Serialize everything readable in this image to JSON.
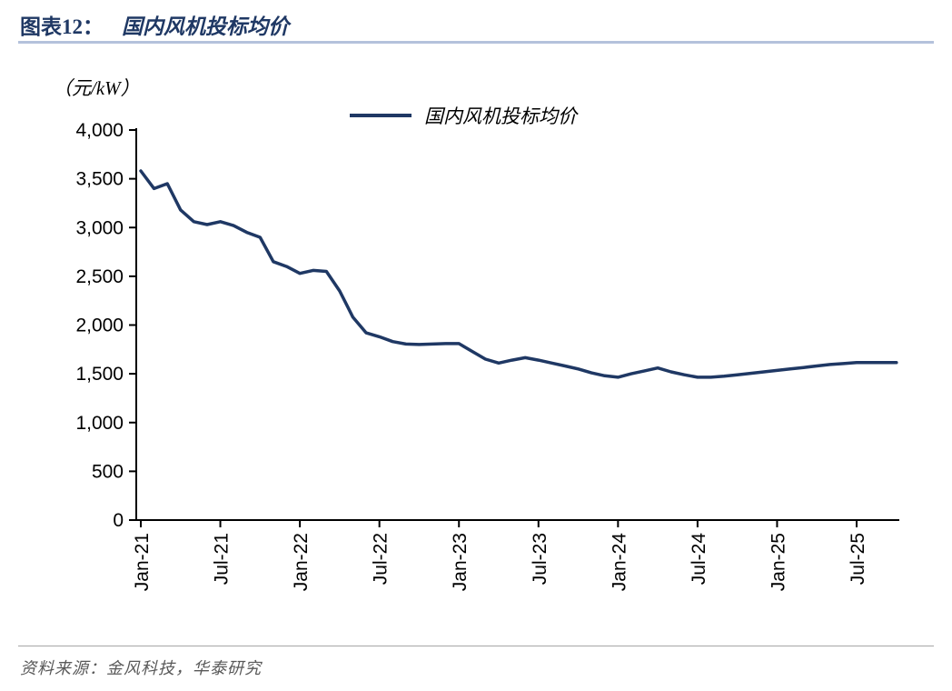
{
  "header": {
    "figure_label": "图表12：",
    "title": "国内风机投标均价"
  },
  "footer": {
    "source": "资料来源：金风科技，华泰研究"
  },
  "colors": {
    "line": "#1f3864",
    "title": "#1f3864",
    "header_rule": "#b4c2dc",
    "footer_text": "#595959",
    "axis": "#000000"
  },
  "chart_data": {
    "type": "line",
    "title": "国内风机投标均价",
    "unit_label": "（元/kW）",
    "legend": [
      "国内风机投标均价"
    ],
    "legend_position": "top-center",
    "grid": false,
    "ylim": [
      0,
      4000
    ],
    "ytick_interval": 500,
    "xtick_labels": [
      "Jan-21",
      "Jul-21",
      "Jan-22",
      "Jul-22",
      "Jan-23",
      "Jul-23",
      "Jan-24",
      "Jul-24",
      "Jan-25",
      "Jul-25"
    ],
    "x": [
      "Jan-21",
      "Feb-21",
      "Mar-21",
      "Apr-21",
      "May-21",
      "Jun-21",
      "Jul-21",
      "Aug-21",
      "Sep-21",
      "Oct-21",
      "Nov-21",
      "Dec-21",
      "Jan-22",
      "Feb-22",
      "Mar-22",
      "Apr-22",
      "May-22",
      "Jun-22",
      "Jul-22",
      "Aug-22",
      "Sep-22",
      "Oct-22",
      "Nov-22",
      "Dec-22",
      "Jan-23",
      "Feb-23",
      "Mar-23",
      "Apr-23",
      "May-23",
      "Jun-23",
      "Jul-23",
      "Aug-23",
      "Sep-23",
      "Oct-23",
      "Nov-23",
      "Dec-23",
      "Jan-24",
      "Feb-24",
      "Mar-24",
      "Apr-24",
      "May-24",
      "Jun-24",
      "Jul-24",
      "Aug-24",
      "Sep-24",
      "Oct-24",
      "Nov-24",
      "Dec-24",
      "Jan-25",
      "Feb-25",
      "Mar-25",
      "Apr-25",
      "May-25",
      "Jun-25",
      "Jul-25",
      "Aug-25",
      "Sep-25",
      "Oct-25"
    ],
    "series": [
      {
        "name": "国内风机投标均价",
        "values": [
          3580,
          3400,
          3450,
          3180,
          3060,
          3030,
          3060,
          3020,
          2950,
          2900,
          2650,
          2600,
          2530,
          2560,
          2550,
          2350,
          2080,
          1920,
          1880,
          1830,
          1805,
          1800,
          1805,
          1810,
          1810,
          1730,
          1650,
          1610,
          1640,
          1665,
          1640,
          1610,
          1580,
          1550,
          1510,
          1480,
          1465,
          1500,
          1530,
          1560,
          1520,
          1490,
          1465,
          1465,
          1475,
          1490,
          1505,
          1520,
          1535,
          1550,
          1565,
          1580,
          1595,
          1605,
          1615,
          1615,
          1615,
          1615
        ]
      }
    ]
  }
}
